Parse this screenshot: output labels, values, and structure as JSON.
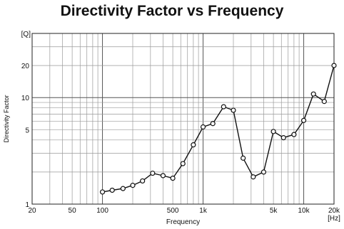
{
  "chart_data": {
    "type": "line",
    "title": "Directivity Factor vs Frequency",
    "xlabel": "Frequency",
    "ylabel": "Directivity Factor",
    "x_unit": "[Hz]",
    "y_unit": "[Q]",
    "x_scale": "log",
    "y_scale": "log",
    "xlim": [
      20,
      20000
    ],
    "ylim": [
      1,
      40
    ],
    "grid": true,
    "x_tick_labels": [
      "20",
      "50",
      "100",
      "500",
      "1k",
      "5k",
      "10k",
      "20k"
    ],
    "y_tick_labels": [
      "1",
      "5",
      "10",
      "20"
    ],
    "series": [
      {
        "x": [
          100,
          125,
          160,
          200,
          250,
          315,
          400,
          500,
          630,
          800,
          1000,
          1250,
          1600,
          2000,
          2500,
          3150,
          4000,
          5000,
          6300,
          8000,
          10000,
          12500,
          16000,
          20000
        ],
        "y": [
          1.3,
          1.35,
          1.4,
          1.5,
          1.65,
          1.95,
          1.85,
          1.75,
          2.4,
          3.6,
          5.3,
          5.7,
          8.2,
          7.6,
          2.7,
          1.8,
          2.0,
          4.8,
          4.2,
          4.5,
          6.1,
          10.8,
          9.2,
          20
        ]
      }
    ]
  }
}
